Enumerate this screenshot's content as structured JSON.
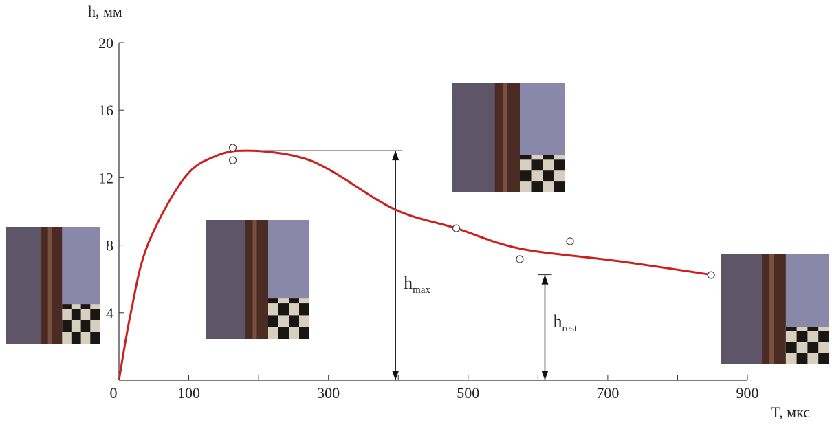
{
  "chart_data": {
    "type": "scatter",
    "x_label": "T, мкс",
    "y_label": "h, мм",
    "xlim": [
      0,
      900
    ],
    "ylim": [
      0,
      20
    ],
    "xticks": [
      0,
      100,
      300,
      500,
      700,
      900
    ],
    "xminor": [
      200,
      400,
      600,
      800
    ],
    "yticks": [
      4,
      8,
      12,
      16,
      20
    ],
    "series": [
      {
        "color": "#444444",
        "x": [
          163,
          163,
          483,
          574,
          646,
          848
        ],
        "values": [
          13.77,
          13.03,
          9.0,
          7.17,
          8.23,
          6.23
        ]
      },
      {
        "type": "line",
        "color": "#cc1f1f",
        "x": [
          0,
          17,
          41,
          94,
          140,
          184,
          250,
          300,
          396,
          483,
          574,
          716,
          848
        ],
        "values": [
          0,
          4,
          8,
          12,
          13.3,
          13.6,
          13.3,
          12.5,
          10.1,
          9.0,
          7.8,
          7.05,
          6.25
        ]
      }
    ],
    "annotations": [
      {
        "text": "h",
        "subscript": "max",
        "x": 396,
        "from": 184,
        "value": 13.6
      },
      {
        "text": "h",
        "subscript": "rest",
        "x": 610,
        "from": 600,
        "value": 6.25
      }
    ]
  }
}
